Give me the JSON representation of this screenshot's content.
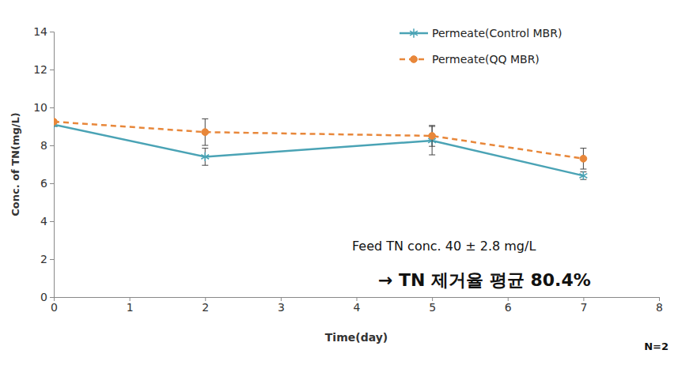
{
  "chart_data": {
    "type": "line",
    "x_label": "Time(day)",
    "y_label": "Conc. of TN(mg/L)",
    "x": [
      0,
      2,
      5,
      7
    ],
    "xlim": [
      0,
      8
    ],
    "xticks": [
      0,
      1,
      2,
      3,
      4,
      5,
      6,
      7,
      8
    ],
    "ylim": [
      0,
      14
    ],
    "yticks": [
      0,
      2,
      4,
      6,
      8,
      10,
      12,
      14
    ],
    "grid": false,
    "legend": "top-right",
    "series": [
      {
        "name": "Permeate(Control MBR)",
        "color": "#4aa3b5",
        "marker": "asterisk",
        "line_style": "solid",
        "values": [
          9.1,
          7.4,
          8.25,
          6.4
        ],
        "errors": [
          0.1,
          0.45,
          0.75,
          0.2
        ]
      },
      {
        "name": "Permeate(QQ MBR)",
        "color": "#e8873a",
        "marker": "circle",
        "line_style": "dashed",
        "values": [
          9.25,
          8.7,
          8.5,
          7.3
        ],
        "errors": [
          0.1,
          0.7,
          0.55,
          0.55
        ]
      }
    ],
    "annotations": [
      "Feed TN conc. 40 ± 2.8 mg/L",
      "→ TN 제거율 평균 80.4%",
      "N=2"
    ]
  }
}
